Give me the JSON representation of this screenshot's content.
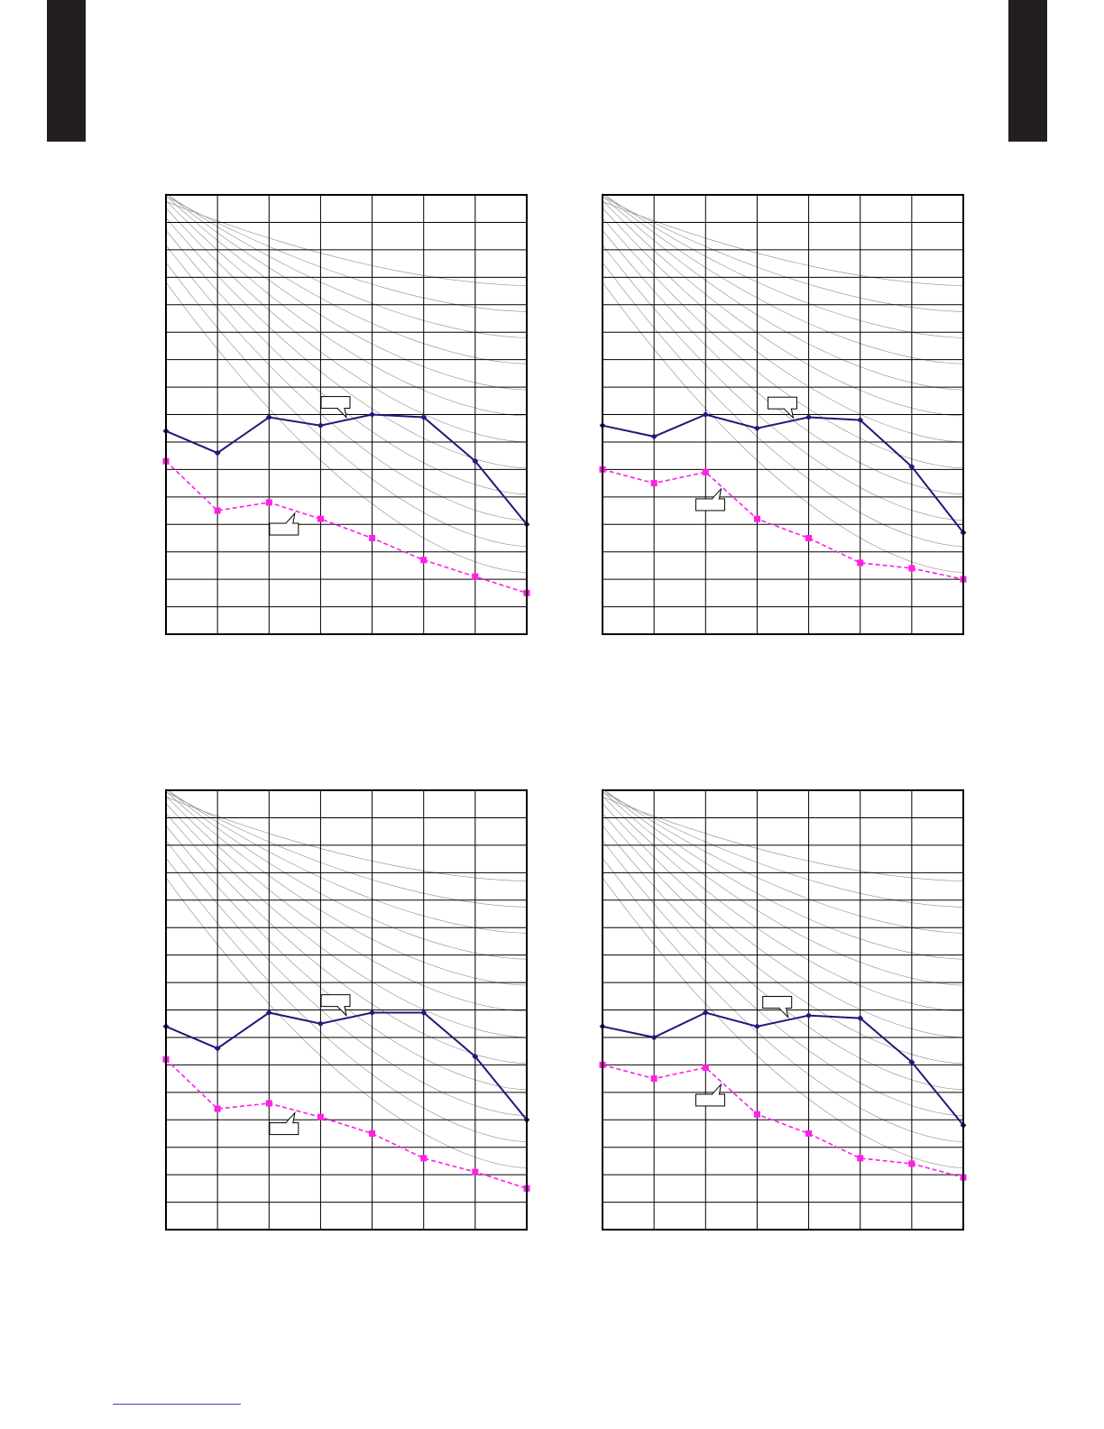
{
  "colors": {
    "tab": "#231f20",
    "grid": "#000000",
    "nc_curves": "#8c8c8c",
    "series_a": "#1f1a7a",
    "series_b": "#ff1fe6",
    "link_rule": "#3f48cc"
  },
  "chart_data": [
    {
      "type": "line",
      "grid": true,
      "x": [
        0,
        1,
        2,
        3,
        4,
        5,
        6,
        7
      ],
      "ylim": [
        0,
        16
      ],
      "background_curves": 12,
      "series": [
        {
          "style": "solid",
          "marker": "diamond",
          "color": "#1f1a7a",
          "values": [
            7.4,
            6.6,
            7.9,
            7.6,
            8.0,
            7.9,
            6.3,
            4.0
          ]
        },
        {
          "style": "dashed",
          "marker": "square",
          "color": "#ff1fe6",
          "values": [
            6.3,
            4.5,
            4.8,
            4.2,
            3.5,
            2.7,
            2.1,
            1.5
          ]
        }
      ],
      "callouts": [
        {
          "target_series": 0,
          "anchor_x": 3.5,
          "text": ""
        },
        {
          "target_series": 1,
          "anchor_x": 2.5,
          "text": ""
        }
      ]
    },
    {
      "type": "line",
      "grid": true,
      "x": [
        0,
        1,
        2,
        3,
        4,
        5,
        6,
        7
      ],
      "ylim": [
        0,
        16
      ],
      "background_curves": 12,
      "series": [
        {
          "style": "solid",
          "marker": "diamond",
          "color": "#1f1a7a",
          "values": [
            7.6,
            7.2,
            8.0,
            7.5,
            7.9,
            7.8,
            6.1,
            3.7
          ]
        },
        {
          "style": "dashed",
          "marker": "square",
          "color": "#ff1fe6",
          "values": [
            6.0,
            5.5,
            5.9,
            4.2,
            3.5,
            2.6,
            2.4,
            2.0
          ]
        }
      ],
      "callouts": [
        {
          "target_series": 0,
          "anchor_x": 3.7,
          "text": ""
        },
        {
          "target_series": 1,
          "anchor_x": 2.3,
          "text": ""
        }
      ]
    },
    {
      "type": "line",
      "grid": true,
      "x": [
        0,
        1,
        2,
        3,
        4,
        5,
        6,
        7
      ],
      "ylim": [
        0,
        16
      ],
      "background_curves": 12,
      "series": [
        {
          "style": "solid",
          "marker": "diamond",
          "color": "#1f1a7a",
          "values": [
            7.4,
            6.6,
            7.9,
            7.5,
            7.9,
            7.9,
            6.3,
            4.0
          ]
        },
        {
          "style": "dashed",
          "marker": "square",
          "color": "#ff1fe6",
          "values": [
            6.2,
            4.4,
            4.6,
            4.1,
            3.5,
            2.6,
            2.1,
            1.5
          ]
        }
      ],
      "callouts": [
        {
          "target_series": 0,
          "anchor_x": 3.5,
          "text": ""
        },
        {
          "target_series": 1,
          "anchor_x": 2.5,
          "text": ""
        }
      ]
    },
    {
      "type": "line",
      "grid": true,
      "x": [
        0,
        1,
        2,
        3,
        4,
        5,
        6,
        7
      ],
      "ylim": [
        0,
        16
      ],
      "background_curves": 12,
      "series": [
        {
          "style": "solid",
          "marker": "diamond",
          "color": "#1f1a7a",
          "values": [
            7.4,
            7.0,
            7.9,
            7.4,
            7.8,
            7.7,
            6.1,
            3.8
          ]
        },
        {
          "style": "dashed",
          "marker": "square",
          "color": "#ff1fe6",
          "values": [
            6.0,
            5.5,
            5.9,
            4.2,
            3.5,
            2.6,
            2.4,
            1.9
          ]
        }
      ],
      "callouts": [
        {
          "target_series": 0,
          "anchor_x": 3.6,
          "text": ""
        },
        {
          "target_series": 1,
          "anchor_x": 2.3,
          "text": ""
        }
      ]
    }
  ]
}
